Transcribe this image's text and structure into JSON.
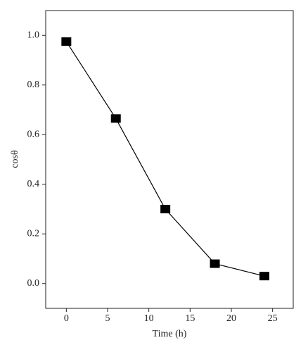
{
  "chart_data": {
    "type": "line",
    "x_label": "Time (h)",
    "y_label": "cosθ",
    "x": [
      0,
      6,
      12,
      18,
      24
    ],
    "series": [
      {
        "color": "#000000",
        "marker": "square",
        "values": [
          0.975,
          0.665,
          0.3,
          0.08,
          0.03
        ]
      }
    ],
    "xlim": [
      -2.5,
      27.5
    ],
    "xticks": [
      0,
      5,
      10,
      15,
      20,
      25
    ],
    "ylim": [
      -0.1,
      1.1
    ],
    "yticks": [
      {
        "value": 0,
        "label": "0.0"
      },
      {
        "value": 0.2,
        "label": "0.2"
      },
      {
        "value": 0.4,
        "label": "0.4"
      },
      {
        "value": 0.6,
        "label": "0.6"
      },
      {
        "value": 0.8,
        "label": "0.8"
      },
      {
        "value": 1.0,
        "label": "1.0"
      }
    ],
    "grid": false
  }
}
